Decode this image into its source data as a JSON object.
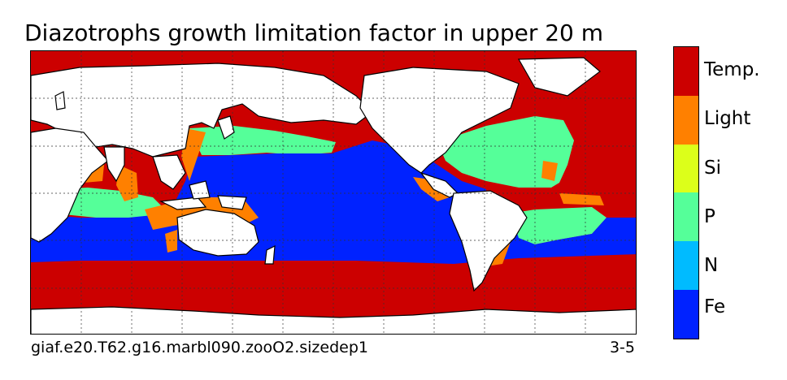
{
  "title": "Diazotrophs growth limitation factor in upper 20 m",
  "caption_left": "giaf.e20.T62.g16.marbl090.zooO2.sizedep1",
  "caption_right": "3-5",
  "legend": [
    {
      "label": "Temp.",
      "color": "#cc0000"
    },
    {
      "label": "Light",
      "color": "#ff8000"
    },
    {
      "label": "Si",
      "color": "#dcff1a"
    },
    {
      "label": "P",
      "color": "#55ff99"
    },
    {
      "label": "N",
      "color": "#00bbff"
    },
    {
      "label": "Fe",
      "color": "#0022ff"
    }
  ]
}
